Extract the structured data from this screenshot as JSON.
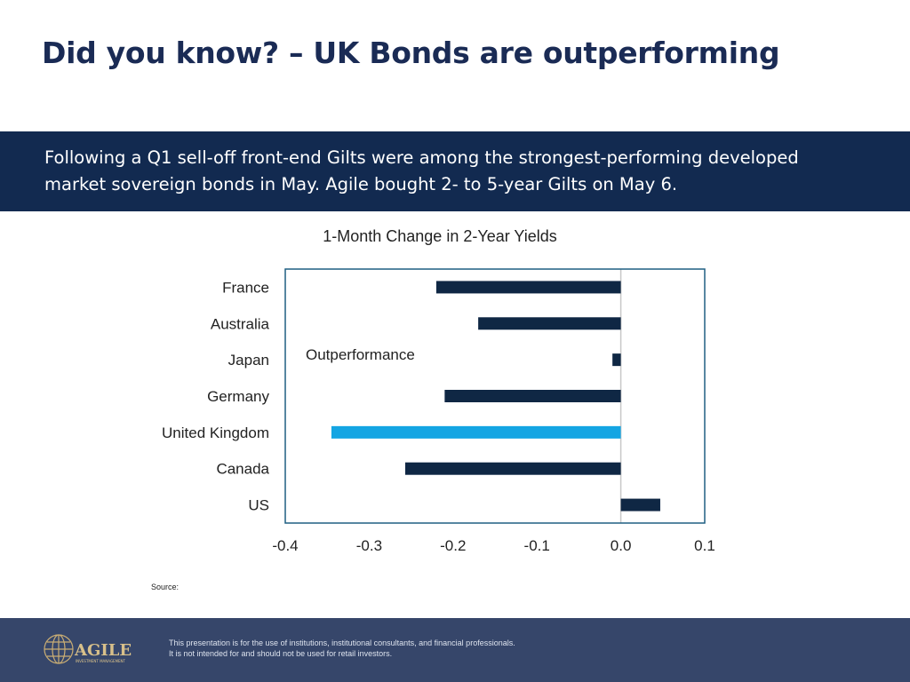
{
  "page": {
    "title": "Did you know? – UK Bonds are outperforming"
  },
  "banner": {
    "text": "Following a Q1 sell-off front-end Gilts were among the strongest-performing developed market sovereign bonds in May.  Agile bought 2- to 5-year Gilts on May 6."
  },
  "chart_data": {
    "type": "bar",
    "orientation": "horizontal",
    "title": "1-Month Change in 2-Year Yields",
    "categories": [
      "France",
      "Australia",
      "Japan",
      "Germany",
      "United Kingdom",
      "Canada",
      "US"
    ],
    "values": [
      -0.22,
      -0.17,
      -0.01,
      -0.21,
      -0.345,
      -0.257,
      0.047
    ],
    "xlim": [
      -0.4,
      0.1
    ],
    "xticks": [
      "-0.4",
      "-0.3",
      "-0.2",
      "-0.1",
      "0.0",
      "0.1"
    ],
    "annotation": "Outperformance",
    "highlight_category": "United Kingdom",
    "colors": {
      "default": "#0f2744",
      "highlight": "#14a5e3",
      "frame": "#1f5f82",
      "zero_line": "#c8c8c8"
    },
    "grid": false
  },
  "source": {
    "label": "Source:"
  },
  "footer": {
    "logo_text": "AGILE",
    "logo_subtext": "INVESTMENT MANAGEMENT",
    "disclaimer_line1": "This presentation is for the use of institutions, institutional consultants, and financial professionals.",
    "disclaimer_line2": "It is not intended for and should not be used for retail investors."
  }
}
